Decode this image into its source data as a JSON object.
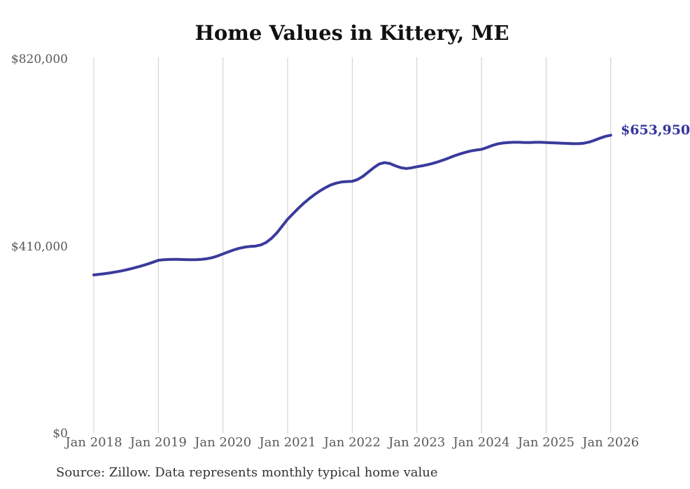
{
  "chart_data": {
    "type": "line",
    "title": "Home Values in Kittery, ME",
    "source": "Source: Zillow. Data represents monthly typical home value",
    "series_name": "Monthly typical home value",
    "end_label": "$653,950",
    "frequency": "monthly",
    "x_start": "Jan 2018",
    "x_end": "Jan 2026",
    "x_tick_labels": [
      "Jan 2018",
      "Jan 2019",
      "Jan 2020",
      "Jan 2021",
      "Jan 2022",
      "Jan 2023",
      "Jan 2024",
      "Jan 2025",
      "Jan 2026"
    ],
    "y_ticks": [
      {
        "label": "$820,000",
        "value": 820000
      },
      {
        "label": "$410,000",
        "value": 410000
      },
      {
        "label": "$0",
        "value": 0
      }
    ],
    "ylim": [
      0,
      820000
    ],
    "grid": "vertical-gridlines-only",
    "legend": "none",
    "colors": {
      "line": "#3a3a9c",
      "end_label": "#34349e",
      "grid": "#cccccc",
      "axis_text": "#595959",
      "title": "#111111",
      "source_text": "#333333"
    },
    "values": [
      348000,
      349200,
      350600,
      352300,
      354300,
      356500,
      359000,
      361800,
      364900,
      368200,
      371800,
      375800,
      380000,
      381200,
      381900,
      382100,
      381900,
      381500,
      381200,
      381400,
      382100,
      383400,
      385800,
      389500,
      394000,
      398500,
      402700,
      406200,
      408800,
      410300,
      411000,
      413500,
      419000,
      428000,
      440000,
      455000,
      470000,
      482000,
      494000,
      505000,
      515000,
      524000,
      532000,
      539000,
      545000,
      549000,
      551500,
      552500,
      553000,
      557000,
      564000,
      573500,
      583000,
      591000,
      594000,
      592000,
      587000,
      583000,
      581000,
      582500,
      585000,
      587000,
      589500,
      592500,
      596000,
      600000,
      604500,
      609000,
      613000,
      616500,
      619500,
      621500,
      623000,
      627000,
      631500,
      635000,
      637000,
      638000,
      638500,
      638500,
      638000,
      638000,
      638500,
      638500,
      638000,
      637500,
      637000,
      636500,
      636000,
      635500,
      635500,
      636500,
      639000,
      643000,
      647500,
      651500,
      653950
    ]
  }
}
